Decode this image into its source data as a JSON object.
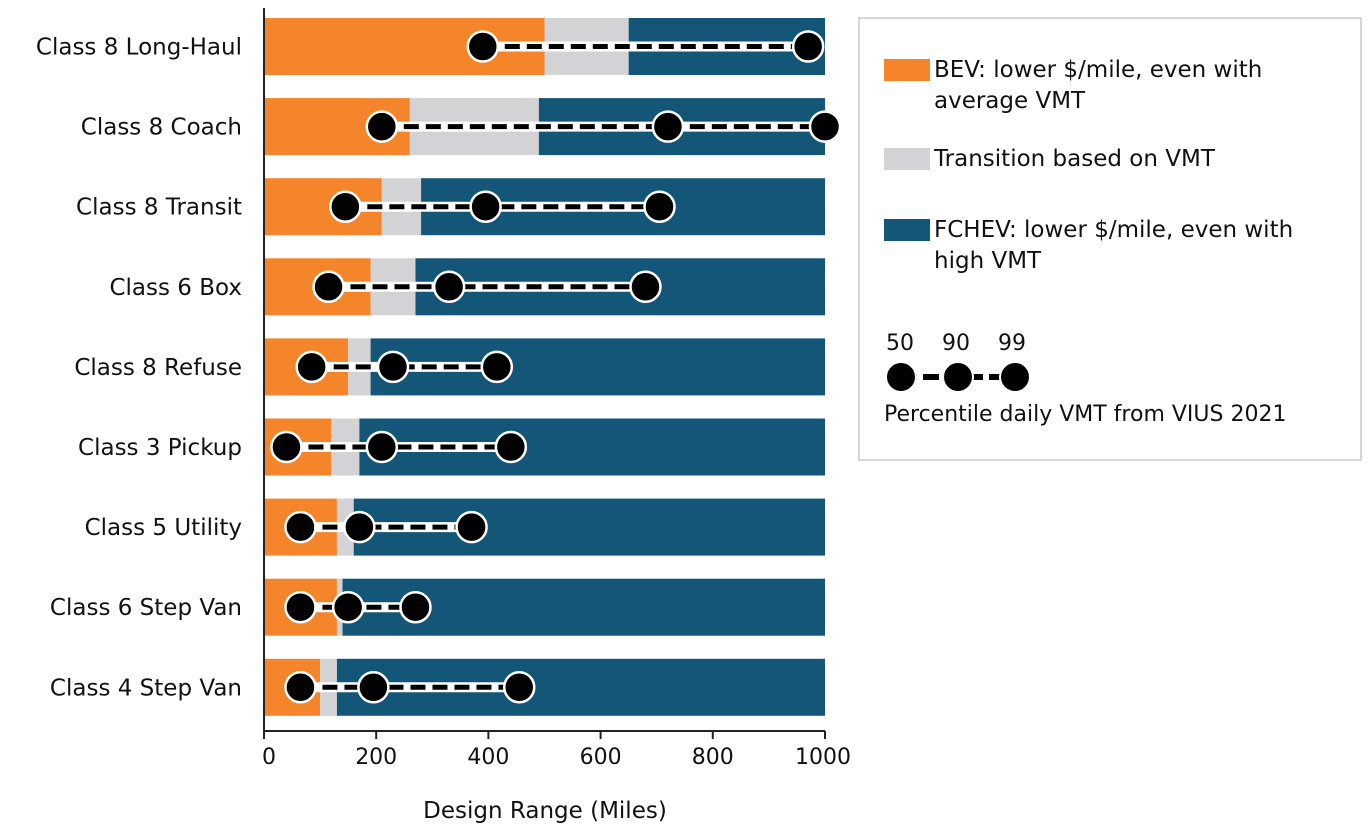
{
  "chart_data": {
    "type": "bar",
    "orientation": "horizontal-stacked",
    "xlabel": "Design Range (Miles)",
    "xlim": [
      0,
      1000
    ],
    "xticks": [
      0,
      200,
      400,
      600,
      800,
      1000
    ],
    "categories": [
      "Class 8 Long-Haul",
      "Class 8 Coach",
      "Class 8 Transit",
      "Class 6 Box",
      "Class 8 Refuse",
      "Class 3 Pickup",
      "Class 5 Utility",
      "Class 6 Step Van",
      "Class 4 Step Van"
    ],
    "series": [
      {
        "name": "BEV: lower $/mile, even with average VMT",
        "color": "#F5852A",
        "values": [
          500,
          260,
          210,
          190,
          150,
          120,
          130,
          130,
          100
        ]
      },
      {
        "name": "Transition based on VMT",
        "color": "#D3D3D5",
        "values": [
          150,
          230,
          70,
          80,
          40,
          50,
          30,
          10,
          30
        ]
      },
      {
        "name": "FCHEV: lower $/mile, even with high VMT",
        "color": "#135678",
        "values": [
          350,
          510,
          720,
          730,
          810,
          830,
          840,
          860,
          870
        ]
      }
    ],
    "percentiles": {
      "labels": [
        "50",
        "90",
        "99"
      ],
      "caption": "Percentile daily VMT from VIUS 2021",
      "values": [
        [
          390,
          null,
          970
        ],
        [
          210,
          720,
          1000
        ],
        [
          145,
          395,
          705
        ],
        [
          115,
          330,
          680
        ],
        [
          85,
          230,
          415
        ],
        [
          40,
          210,
          440
        ],
        [
          65,
          170,
          370
        ],
        [
          65,
          150,
          270
        ],
        [
          65,
          195,
          455
        ]
      ]
    },
    "legend_position": "right",
    "grid": false
  }
}
